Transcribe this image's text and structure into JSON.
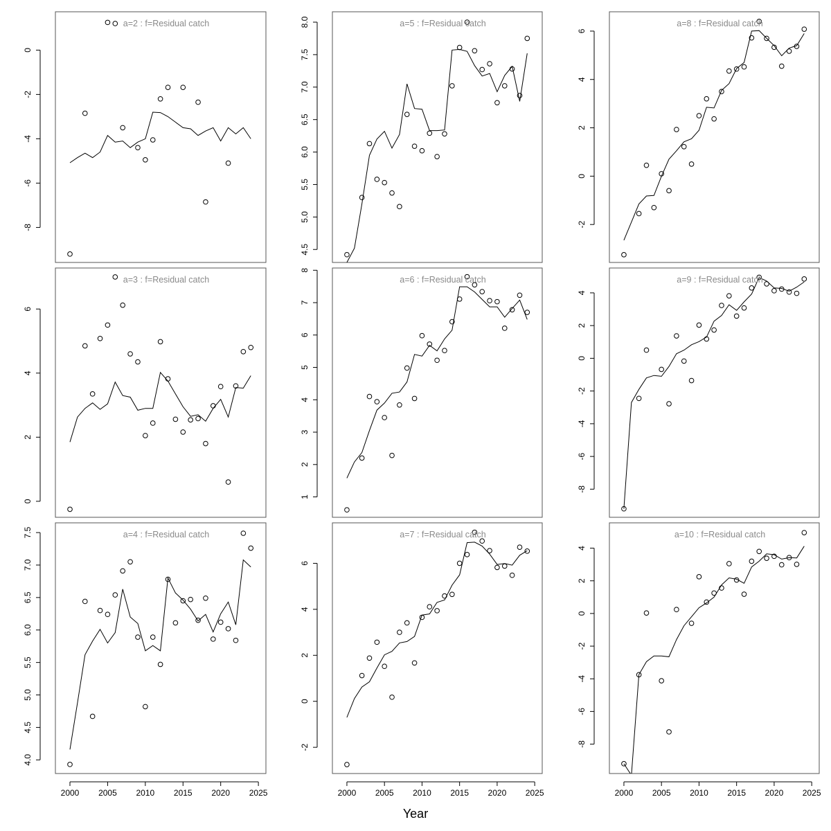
{
  "chart_data": {
    "type": "scatter",
    "layout": "3x3 grid of panels, column-major",
    "xlabel": "Year",
    "xlim": [
      1998.07,
      2026.0
    ],
    "xticks": [
      2000,
      2005,
      2010,
      2015,
      2020,
      2025
    ],
    "x": [
      2000,
      2001,
      2002,
      2003,
      2004,
      2005,
      2006,
      2007,
      2008,
      2009,
      2010,
      2011,
      2012,
      2013,
      2014,
      2015,
      2016,
      2017,
      2018,
      2019,
      2020,
      2021,
      2022,
      2023,
      2024
    ],
    "grid": false,
    "marker": "open-circle",
    "line_color": "#000000",
    "title_color": "#8a8a8a",
    "panels": [
      {
        "title": "a=2  :  f=Residual catch",
        "ylim": [
          -9.58,
          1.73
        ],
        "yticks": [
          -8,
          -6,
          -4,
          -2,
          0
        ],
        "observed": [
          -9.2,
          null,
          -2.85,
          null,
          null,
          1.25,
          1.2,
          -3.5,
          null,
          -4.4,
          -4.95,
          -4.05,
          -2.2,
          -1.68,
          null,
          -1.68,
          null,
          -2.35,
          -6.85,
          null,
          null,
          -5.1,
          null,
          null,
          null
        ],
        "fitted": [
          -5.08,
          -4.85,
          -4.65,
          -4.85,
          -4.6,
          -3.85,
          -4.15,
          -4.1,
          -4.4,
          -4.15,
          -4.0,
          -2.8,
          -2.82,
          -3.0,
          -3.25,
          -3.5,
          -3.55,
          -3.85,
          -3.65,
          -3.5,
          -4.1,
          -3.5,
          -3.78,
          -3.5,
          -4.0
        ]
      },
      {
        "title": "a=3  :  f=Residual catch",
        "ylim": [
          -0.5,
          7.28
        ],
        "yticks": [
          0,
          2,
          4,
          6
        ],
        "observed": [
          -0.25,
          null,
          4.85,
          3.35,
          5.08,
          5.5,
          7.0,
          6.12,
          4.6,
          4.35,
          2.05,
          2.44,
          4.98,
          3.82,
          2.56,
          2.16,
          2.54,
          2.58,
          1.8,
          2.98,
          3.58,
          0.6,
          3.6,
          4.67,
          4.8
        ],
        "fitted": [
          1.85,
          2.63,
          2.9,
          3.07,
          2.87,
          3.04,
          3.72,
          3.3,
          3.25,
          2.84,
          2.9,
          2.9,
          4.02,
          3.75,
          3.35,
          2.95,
          2.65,
          2.7,
          2.5,
          2.9,
          3.18,
          2.63,
          3.55,
          3.53,
          3.92
        ]
      },
      {
        "title": "a=4  :  f=Residual catch",
        "ylim": [
          3.79,
          7.65
        ],
        "yticks": [
          4.0,
          4.5,
          5.0,
          5.5,
          6.0,
          6.5,
          7.0,
          7.5
        ],
        "observed": [
          3.93,
          null,
          6.44,
          4.67,
          6.3,
          6.24,
          6.54,
          6.91,
          7.05,
          5.89,
          4.82,
          5.89,
          5.47,
          6.78,
          6.11,
          6.45,
          6.47,
          6.15,
          6.49,
          5.86,
          6.12,
          6.02,
          5.84,
          7.49,
          7.26
        ],
        "fitted": [
          4.16,
          4.88,
          5.62,
          5.83,
          6.01,
          5.8,
          5.96,
          6.63,
          6.2,
          6.1,
          5.68,
          5.76,
          5.68,
          6.8,
          6.57,
          6.46,
          6.32,
          6.14,
          6.24,
          5.97,
          6.25,
          6.43,
          6.08,
          7.08,
          6.97
        ]
      },
      {
        "title": "a=5  :  f=Residual catch",
        "ylim": [
          4.3,
          8.16
        ],
        "yticks": [
          4.5,
          5.0,
          5.5,
          6.0,
          6.5,
          7.0,
          7.5,
          8.0
        ],
        "observed": [
          4.42,
          null,
          5.3,
          6.13,
          5.58,
          5.53,
          5.37,
          5.16,
          6.58,
          6.09,
          6.02,
          6.29,
          5.93,
          6.28,
          7.02,
          7.61,
          8.0,
          7.56,
          7.27,
          7.36,
          6.76,
          7.02,
          7.28,
          6.87,
          7.75
        ],
        "fitted": [
          4.3,
          4.52,
          5.2,
          5.95,
          6.2,
          6.32,
          6.06,
          6.27,
          7.05,
          6.67,
          6.66,
          6.33,
          6.33,
          6.34,
          7.57,
          7.58,
          7.55,
          7.33,
          7.17,
          7.21,
          6.93,
          7.18,
          7.32,
          6.78,
          7.52
        ]
      },
      {
        "title": "a=6  :  f=Residual catch",
        "ylim": [
          0.37,
          8.07
        ],
        "yticks": [
          1,
          2,
          3,
          4,
          5,
          6,
          7,
          8
        ],
        "observed": [
          0.6,
          null,
          2.2,
          4.1,
          3.94,
          3.45,
          2.28,
          3.84,
          4.98,
          4.04,
          5.98,
          5.72,
          5.22,
          5.52,
          6.41,
          7.11,
          7.8,
          7.55,
          7.34,
          7.06,
          7.03,
          6.21,
          6.78,
          7.23,
          6.7
        ],
        "fitted": [
          1.58,
          2.08,
          2.37,
          3.05,
          3.68,
          3.9,
          4.2,
          4.24,
          4.55,
          5.4,
          5.35,
          5.68,
          5.51,
          5.88,
          6.15,
          7.49,
          7.49,
          7.33,
          7.1,
          6.87,
          6.87,
          6.55,
          6.82,
          7.08,
          6.48
        ]
      },
      {
        "title": "a=7  :  f=Residual catch",
        "ylim": [
          -3.14,
          7.76
        ],
        "yticks": [
          -2,
          0,
          2,
          4,
          6
        ],
        "observed": [
          -2.75,
          null,
          1.12,
          1.88,
          2.57,
          1.52,
          0.18,
          3.0,
          3.41,
          1.67,
          3.65,
          4.11,
          3.94,
          4.58,
          4.65,
          6.0,
          6.38,
          7.35,
          6.97,
          6.55,
          5.82,
          5.88,
          5.48,
          6.7,
          6.53
        ],
        "fitted": [
          -0.7,
          0.12,
          0.62,
          0.85,
          1.45,
          2.02,
          2.17,
          2.54,
          2.6,
          2.82,
          3.75,
          3.8,
          4.3,
          4.41,
          5.05,
          5.5,
          6.9,
          6.92,
          6.75,
          6.4,
          5.95,
          5.99,
          5.92,
          6.35,
          6.55
        ]
      },
      {
        "title": "a=8  :  f=Residual catch",
        "ylim": [
          -3.57,
          6.8
        ],
        "yticks": [
          -2,
          0,
          2,
          4,
          6
        ],
        "observed": [
          -3.25,
          null,
          -1.55,
          0.45,
          -1.3,
          0.1,
          -0.6,
          1.93,
          1.22,
          0.5,
          2.5,
          3.2,
          2.37,
          3.5,
          4.35,
          4.43,
          4.52,
          5.72,
          6.4,
          5.7,
          5.33,
          4.55,
          5.17,
          5.37,
          6.08
        ],
        "fitted": [
          -2.65,
          -1.9,
          -1.15,
          -0.82,
          -0.8,
          0.0,
          0.7,
          1.05,
          1.42,
          1.55,
          1.9,
          2.85,
          2.82,
          3.55,
          3.83,
          4.45,
          4.7,
          6.0,
          6.02,
          5.7,
          5.4,
          4.98,
          5.3,
          5.4,
          5.9
        ]
      },
      {
        "title": "a=9  :  f=Residual catch",
        "ylim": [
          -9.72,
          5.52
        ],
        "yticks": [
          -8,
          -6,
          -4,
          -2,
          0,
          2,
          4
        ],
        "observed": [
          -9.2,
          null,
          -2.45,
          0.5,
          null,
          -0.68,
          -2.78,
          1.37,
          -0.17,
          -1.36,
          2.03,
          1.18,
          1.73,
          3.23,
          3.82,
          2.58,
          3.08,
          4.3,
          4.95,
          4.55,
          4.13,
          4.23,
          4.05,
          3.97,
          4.85
        ],
        "fitted": [
          -9.2,
          -2.7,
          -1.9,
          -1.2,
          -1.05,
          -1.1,
          -0.5,
          0.28,
          0.5,
          0.83,
          1.02,
          1.3,
          2.27,
          2.62,
          3.27,
          2.93,
          3.45,
          3.93,
          4.95,
          4.72,
          4.3,
          4.27,
          4.1,
          4.35,
          4.67
        ]
      },
      {
        "title": "a=10  :  f=Residual catch",
        "ylim": [
          -9.8,
          5.55
        ],
        "yticks": [
          -8,
          -6,
          -4,
          -2,
          0,
          2,
          4
        ],
        "observed": [
          -9.2,
          null,
          -3.75,
          0.03,
          null,
          -4.12,
          -7.25,
          0.24,
          null,
          -0.6,
          2.25,
          0.7,
          1.25,
          1.56,
          3.05,
          2.05,
          1.18,
          3.2,
          3.8,
          3.38,
          3.5,
          2.98,
          3.42,
          3.01,
          4.95
        ],
        "fitted": [
          -9.2,
          -9.9,
          -3.75,
          -2.95,
          -2.6,
          -2.6,
          -2.65,
          -1.6,
          -0.75,
          -0.2,
          0.35,
          0.65,
          1.0,
          1.75,
          2.18,
          2.1,
          1.85,
          2.85,
          3.2,
          3.65,
          3.6,
          3.33,
          3.42,
          3.4,
          4.12
        ]
      }
    ]
  }
}
